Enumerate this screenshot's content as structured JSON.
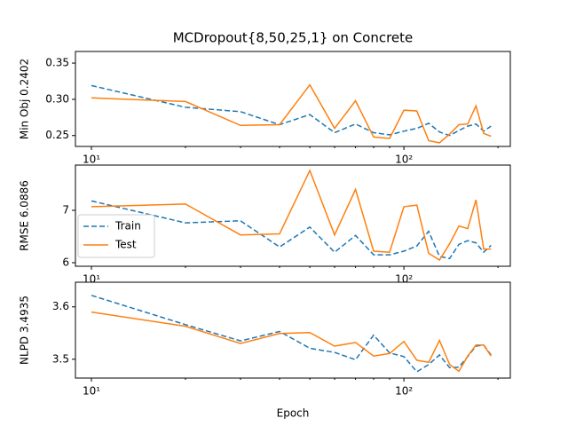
{
  "chart_data": [
    {
      "type": "line",
      "title": "MCDropout{8,50,25,1} on Concrete",
      "ylabel": "Min Obj 0.2402",
      "log_x": true,
      "xlim": [
        8.89,
        219
      ],
      "xticks": [
        {
          "value": 10,
          "label": "10¹"
        },
        {
          "value": 100,
          "label": "10²"
        }
      ],
      "xminorticks": [
        20,
        30,
        40,
        50,
        60,
        70,
        80,
        90,
        200
      ],
      "ylim": [
        0.235,
        0.366
      ],
      "yticks": [
        0.25,
        {
          "value": 0.3,
          "label": "0.30"
        },
        0.35
      ],
      "x": [
        10,
        20,
        30,
        40,
        50,
        60,
        70,
        80,
        90,
        100,
        110,
        120,
        130,
        140,
        150,
        160,
        170,
        180,
        190
      ],
      "series": [
        {
          "name": "Train",
          "color": "#1f77b4",
          "linestyle": "dashed",
          "values": [
            0.319,
            0.289,
            0.283,
            0.265,
            0.279,
            0.254,
            0.266,
            0.254,
            0.251,
            0.256,
            0.26,
            0.267,
            0.255,
            0.25,
            0.257,
            0.263,
            0.266,
            0.256,
            0.263
          ]
        },
        {
          "name": "Test",
          "color": "#ff7f0e",
          "linestyle": "solid",
          "values": [
            0.302,
            0.297,
            0.264,
            0.265,
            0.32,
            0.26,
            0.298,
            0.248,
            0.246,
            0.285,
            0.284,
            0.243,
            0.24,
            0.252,
            0.265,
            0.266,
            0.291,
            0.253,
            0.249
          ]
        }
      ]
    },
    {
      "type": "line",
      "ylabel": "RMSE 6.0886",
      "log_x": true,
      "xlim": [
        8.89,
        219
      ],
      "xticks": [
        {
          "value": 10,
          "label": "10¹"
        },
        {
          "value": 100,
          "label": "10²"
        }
      ],
      "xminorticks": [
        20,
        30,
        40,
        50,
        60,
        70,
        80,
        90,
        200
      ],
      "ylim": [
        5.932,
        7.864
      ],
      "yticks": [
        6,
        7
      ],
      "legend": "lower left",
      "x": [
        10,
        20,
        30,
        40,
        50,
        60,
        70,
        80,
        90,
        100,
        110,
        120,
        130,
        140,
        150,
        160,
        170,
        180,
        190
      ],
      "series": [
        {
          "name": "Train",
          "color": "#1f77b4",
          "linestyle": "dashed",
          "values": [
            7.18,
            6.76,
            6.8,
            6.3,
            6.68,
            6.2,
            6.52,
            6.15,
            6.15,
            6.22,
            6.32,
            6.6,
            6.12,
            6.08,
            6.35,
            6.42,
            6.38,
            6.2,
            6.33
          ]
        },
        {
          "name": "Test",
          "color": "#ff7f0e",
          "linestyle": "solid",
          "values": [
            7.07,
            7.12,
            6.53,
            6.55,
            7.76,
            6.53,
            7.4,
            6.22,
            6.2,
            7.07,
            7.1,
            6.18,
            6.05,
            6.36,
            6.7,
            6.65,
            7.2,
            6.26,
            6.26
          ]
        }
      ]
    },
    {
      "type": "line",
      "ylabel": "NLPD 3.4935",
      "xlabel": "Epoch",
      "log_x": true,
      "xlim": [
        8.89,
        219
      ],
      "xticks": [
        {
          "value": 10,
          "label": "10¹"
        },
        {
          "value": 100,
          "label": "10²"
        }
      ],
      "xminorticks": [
        20,
        30,
        40,
        50,
        60,
        70,
        80,
        90,
        200
      ],
      "ylim": [
        3.464,
        3.647
      ],
      "yticks": [
        3.5,
        3.6
      ],
      "x": [
        10,
        20,
        30,
        40,
        50,
        60,
        70,
        80,
        90,
        100,
        110,
        120,
        130,
        140,
        150,
        160,
        170,
        180,
        190
      ],
      "series": [
        {
          "name": "Train",
          "color": "#1f77b4",
          "linestyle": "dashed",
          "values": [
            3.622,
            3.566,
            3.535,
            3.553,
            3.521,
            3.513,
            3.499,
            3.546,
            3.512,
            3.505,
            3.476,
            3.49,
            3.508,
            3.484,
            3.485,
            3.505,
            3.525,
            3.527,
            3.508
          ]
        },
        {
          "name": "Test",
          "color": "#ff7f0e",
          "linestyle": "solid",
          "values": [
            3.59,
            3.563,
            3.53,
            3.549,
            3.551,
            3.525,
            3.532,
            3.506,
            3.511,
            3.534,
            3.498,
            3.494,
            3.536,
            3.49,
            3.477,
            3.506,
            3.527,
            3.527,
            3.506
          ]
        }
      ]
    }
  ]
}
